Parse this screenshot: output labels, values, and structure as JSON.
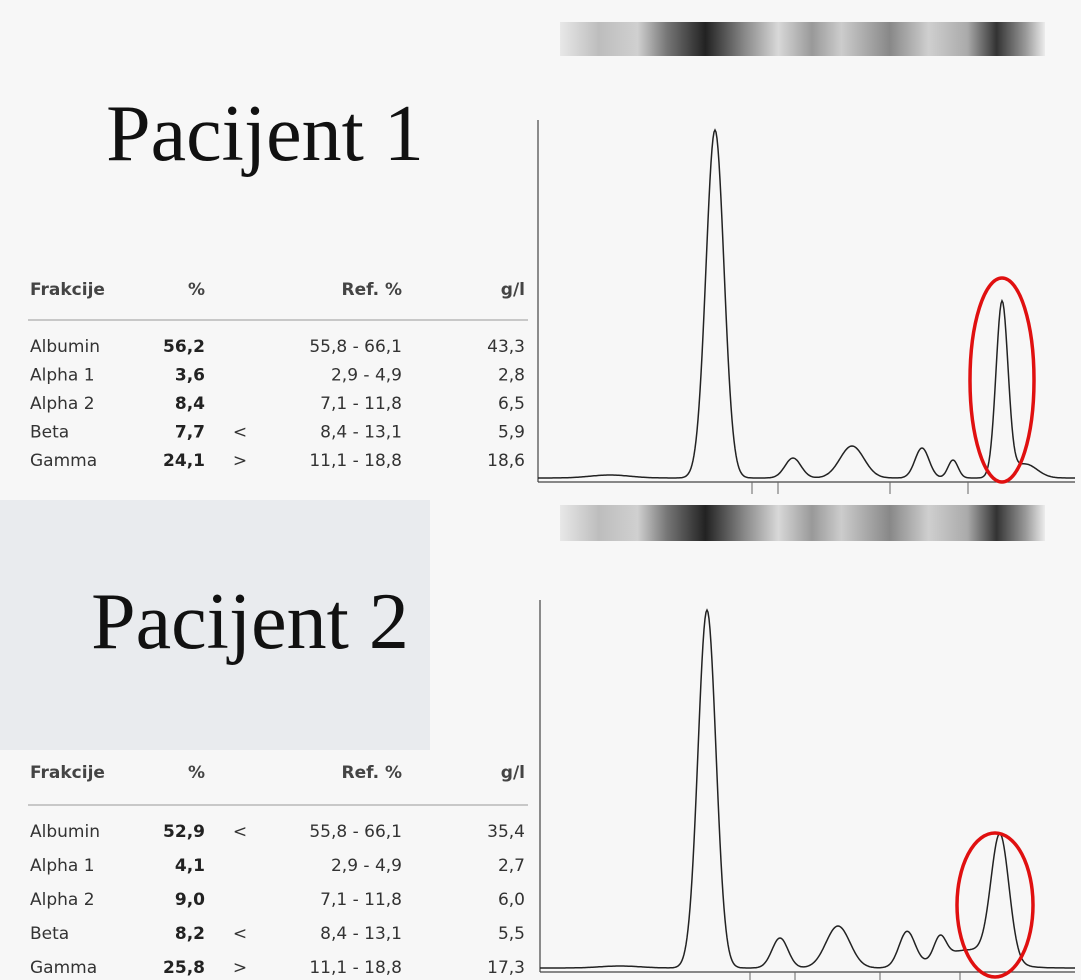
{
  "patients": [
    {
      "title": "Pacijent 1",
      "table": {
        "header": {
          "fraction": "Frakcije",
          "percent": "%",
          "ref": "Ref. %",
          "gl": "g/l"
        },
        "rows": [
          {
            "fraction": "Albumin",
            "percent": "56,2",
            "ref": "55,8 - 66,1",
            "gl": "43,3"
          },
          {
            "fraction": "Alpha 1",
            "percent": "3,6",
            "ref": "2,9 - 4,9",
            "gl": "2,8"
          },
          {
            "fraction": "Alpha 2",
            "percent": "8,4",
            "ref": "7,1 - 11,8",
            "gl": "6,5"
          },
          {
            "fraction": "Beta",
            "percent": "7,7",
            "flag": "<",
            "ref": "8,4 - 13,1",
            "gl": "5,9"
          },
          {
            "fraction": "Gamma",
            "percent": "24,1",
            "flag": ">",
            "ref": "11,1 - 18,8",
            "gl": "18,6"
          }
        ]
      }
    },
    {
      "title": "Pacijent 2",
      "table": {
        "header": {
          "fraction": "Frakcije",
          "percent": "%",
          "ref": "Ref. %",
          "gl": "g/l"
        },
        "rows": [
          {
            "fraction": "Albumin",
            "percent": "52,9",
            "flag": "<",
            "ref": "55,8 - 66,1",
            "gl": "35,4"
          },
          {
            "fraction": "Alpha 1",
            "percent": "4,1",
            "ref": "2,9 - 4,9",
            "gl": "2,7"
          },
          {
            "fraction": "Alpha 2",
            "percent": "9,0",
            "ref": "7,1 - 11,8",
            "gl": "6,0"
          },
          {
            "fraction": "Beta",
            "percent": "8,2",
            "flag": "<",
            "ref": "8,4 - 13,1",
            "gl": "5,5"
          },
          {
            "fraction": "Gamma",
            "percent": "25,8",
            "flag": ">",
            "ref": "11,1 - 18,8",
            "gl": "17,3"
          }
        ]
      }
    }
  ]
}
